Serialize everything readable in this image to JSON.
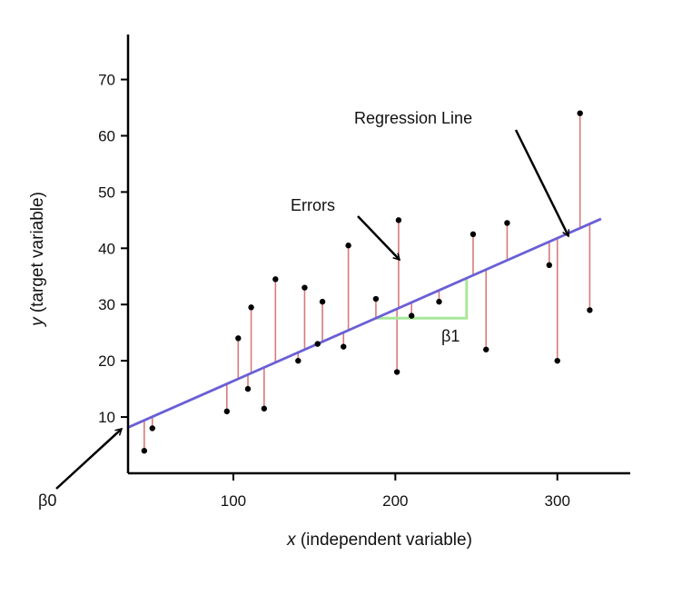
{
  "chart_data": {
    "type": "scatter",
    "title": "",
    "xlabel": {
      "var": "x",
      "desc": " (independent variable)"
    },
    "ylabel": {
      "var": "y",
      "desc": " (target variable)"
    },
    "xlim": [
      35,
      345
    ],
    "ylim": [
      0,
      78
    ],
    "xticks": [
      100,
      200,
      300
    ],
    "yticks": [
      10,
      20,
      30,
      40,
      50,
      60,
      70
    ],
    "grid": false,
    "colors": {
      "points": "#000000",
      "regression_line": "#6a5fd6",
      "errors": "#d77a7a",
      "slope_marker": "#a8e89a",
      "axes": "#000000"
    },
    "points": [
      {
        "x": 45,
        "y": 4
      },
      {
        "x": 50,
        "y": 8
      },
      {
        "x": 96,
        "y": 11
      },
      {
        "x": 103,
        "y": 24
      },
      {
        "x": 109,
        "y": 15
      },
      {
        "x": 111,
        "y": 29.5
      },
      {
        "x": 119,
        "y": 11.5
      },
      {
        "x": 126,
        "y": 34.5
      },
      {
        "x": 140,
        "y": 20
      },
      {
        "x": 144,
        "y": 33
      },
      {
        "x": 152,
        "y": 23
      },
      {
        "x": 155,
        "y": 30.5
      },
      {
        "x": 168,
        "y": 22.5
      },
      {
        "x": 171,
        "y": 40.5
      },
      {
        "x": 188,
        "y": 31
      },
      {
        "x": 201,
        "y": 18
      },
      {
        "x": 202,
        "y": 45
      },
      {
        "x": 210,
        "y": 28
      },
      {
        "x": 227,
        "y": 30.5
      },
      {
        "x": 248,
        "y": 42.5
      },
      {
        "x": 256,
        "y": 22
      },
      {
        "x": 269,
        "y": 44.5
      },
      {
        "x": 295,
        "y": 37
      },
      {
        "x": 300,
        "y": 20
      },
      {
        "x": 314,
        "y": 64
      },
      {
        "x": 320,
        "y": 29
      }
    ],
    "regression_line": {
      "intercept": 3.7,
      "slope": 0.127,
      "x_start": 35,
      "x_end": 327
    },
    "slope_marker": {
      "x_start": 188,
      "x_end": 244,
      "label": "β1"
    },
    "annotations": {
      "regression_line": "Regression Line",
      "errors": "Errors",
      "intercept": "β0"
    }
  }
}
